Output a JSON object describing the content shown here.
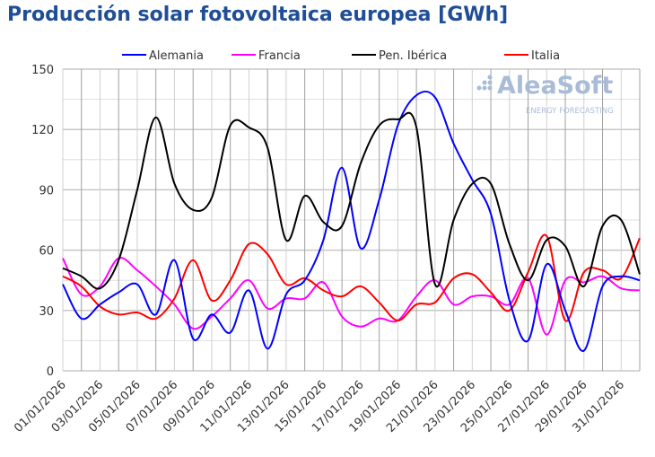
{
  "chart_data": {
    "type": "line",
    "title": "Producción solar fotovoltaica europea [GWh]",
    "xlabel": "",
    "ylabel": "",
    "ylim": [
      0,
      150
    ],
    "yticks": [
      0,
      30,
      60,
      90,
      120,
      150
    ],
    "grid": true,
    "legend_placement": "top",
    "x": [
      "01/01/2026",
      "02/01/2026",
      "03/01/2026",
      "04/01/2026",
      "05/01/2026",
      "06/01/2026",
      "07/01/2026",
      "08/01/2026",
      "09/01/2026",
      "10/01/2026",
      "11/01/2026",
      "12/01/2026",
      "13/01/2026",
      "14/01/2026",
      "15/01/2026",
      "16/01/2026",
      "17/01/2026",
      "18/01/2026",
      "19/01/2026",
      "20/01/2026",
      "21/01/2026",
      "22/01/2026",
      "23/01/2026",
      "24/01/2026",
      "25/01/2026",
      "26/01/2026",
      "27/01/2026",
      "28/01/2026",
      "29/01/2026",
      "30/01/2026",
      "31/01/2026",
      "01/02/2026"
    ],
    "xtick_labels": [
      "01/01/2026",
      "03/01/2026",
      "05/01/2026",
      "07/01/2026",
      "09/01/2026",
      "11/01/2026",
      "13/01/2026",
      "15/01/2026",
      "17/01/2026",
      "19/01/2026",
      "21/01/2026",
      "23/01/2026",
      "25/01/2026",
      "27/01/2026",
      "29/01/2026",
      "31/01/2026"
    ],
    "series": [
      {
        "name": "Alemania",
        "color": "#0000ff",
        "values": [
          43,
          26,
          33,
          39,
          43,
          28,
          55,
          16,
          28,
          19,
          40,
          11,
          38,
          45,
          65,
          101,
          61,
          85,
          122,
          137,
          136,
          113,
          95,
          78,
          35,
          15,
          53,
          30,
          10,
          42,
          47,
          45
        ]
      },
      {
        "name": "Francia",
        "color": "#ff00ff",
        "values": [
          56,
          38,
          42,
          56,
          50,
          42,
          33,
          21,
          27,
          36,
          45,
          31,
          36,
          36,
          44,
          27,
          22,
          26,
          25,
          37,
          45,
          33,
          37,
          37,
          33,
          46,
          18,
          45,
          44,
          47,
          41,
          40
        ]
      },
      {
        "name": "Pen. Ibérica",
        "color": "#000000",
        "values": [
          51,
          47,
          41,
          55,
          90,
          126,
          93,
          80,
          86,
          122,
          121,
          111,
          65,
          87,
          74,
          72,
          103,
          122,
          125,
          121,
          43,
          75,
          93,
          93,
          63,
          45,
          65,
          62,
          42,
          72,
          75,
          48
        ]
      },
      {
        "name": "Italia",
        "color": "#ff0000",
        "values": [
          47,
          42,
          32,
          28,
          29,
          26,
          36,
          55,
          35,
          45,
          63,
          58,
          43,
          46,
          40,
          37,
          42,
          34,
          25,
          33,
          34,
          46,
          48,
          39,
          30,
          49,
          67,
          25,
          49,
          50,
          46,
          66
        ]
      }
    ]
  },
  "watermark": {
    "brand": "AleaSoft",
    "tagline": "ENERGY FORECASTING"
  }
}
